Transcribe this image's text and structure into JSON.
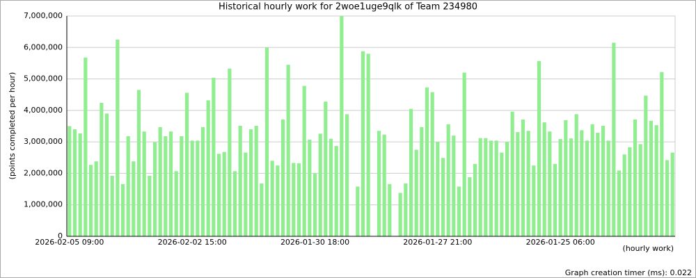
{
  "chart_data": {
    "type": "bar",
    "title": "Historical hourly work for 2woe1uge9qlk of Team 234980",
    "y_label": "(points completed per hour)",
    "x_label": "(hourly work)",
    "footer": "Graph creation timer (ms): 0.022",
    "color": "#90ee90",
    "grid": true,
    "ylim": [
      0,
      7000000
    ],
    "yticks": [
      0,
      {
        "value": 1000000,
        "label": "1,000,000"
      },
      {
        "value": 2000000,
        "label": "2,000,000"
      },
      {
        "value": 3000000,
        "label": "3,000,000"
      },
      {
        "value": 4000000,
        "label": "4,000,000"
      },
      {
        "value": 5000000,
        "label": "5,000,000"
      },
      {
        "value": 6000000,
        "label": "6,000,000"
      },
      {
        "value": 7000000,
        "label": "7,000,000"
      }
    ],
    "categories": [
      "2026-02-05 09:00",
      null,
      null,
      null,
      null,
      null,
      null,
      null,
      null,
      null,
      null,
      null,
      null,
      null,
      null,
      null,
      null,
      null,
      null,
      null,
      null,
      null,
      null,
      "2026-02-02 15:00",
      null,
      null,
      null,
      null,
      null,
      null,
      null,
      null,
      null,
      null,
      null,
      null,
      null,
      null,
      null,
      null,
      null,
      null,
      null,
      null,
      null,
      null,
      "2026-01-30 18:00",
      null,
      null,
      null,
      null,
      null,
      null,
      null,
      null,
      null,
      null,
      null,
      null,
      null,
      null,
      null,
      null,
      null,
      null,
      null,
      null,
      null,
      null,
      "2026-01-27 21:00",
      null,
      null,
      null,
      null,
      null,
      null,
      null,
      null,
      null,
      null,
      null,
      null,
      null,
      null,
      null,
      null,
      null,
      null,
      null,
      null,
      null,
      null,
      "2026-01-25 06:00",
      null,
      null,
      null,
      null,
      null,
      null,
      null,
      null,
      null,
      null,
      null,
      null,
      null,
      null,
      null,
      null,
      null,
      null,
      null,
      null,
      null
    ],
    "values": [
      3500000,
      3400000,
      3270000,
      5680000,
      2270000,
      2380000,
      4240000,
      3900000,
      1920000,
      6250000,
      1660000,
      3180000,
      2380000,
      4650000,
      3330000,
      1920000,
      2990000,
      3470000,
      3180000,
      3330000,
      2070000,
      3180000,
      4560000,
      3040000,
      3040000,
      3470000,
      4320000,
      5040000,
      2620000,
      2680000,
      5330000,
      2070000,
      3510000,
      2660000,
      3400000,
      3510000,
      1680000,
      6000000,
      2400000,
      2250000,
      3710000,
      5450000,
      2330000,
      2320000,
      4780000,
      3070000,
      2000000,
      3260000,
      4280000,
      3100000,
      2870000,
      7000000,
      3880000,
      null,
      1580000,
      5880000,
      5800000,
      null,
      3350000,
      3230000,
      1660000,
      null,
      1380000,
      1680000,
      4050000,
      2750000,
      3470000,
      4730000,
      4580000,
      3000000,
      2490000,
      3560000,
      3200000,
      1580000,
      5200000,
      1880000,
      2300000,
      3120000,
      3120000,
      3040000,
      3040000,
      2660000,
      3000000,
      3960000,
      3310000,
      3710000,
      3350000,
      2250000,
      5570000,
      3620000,
      3330000,
      2300000,
      3090000,
      3690000,
      3110000,
      3880000,
      3370000,
      3040000,
      3560000,
      3290000,
      3510000,
      3040000,
      6150000,
      2090000,
      2600000,
      2830000,
      3710000,
      2930000,
      4470000,
      3670000,
      3530000,
      5220000,
      2420000,
      2660000
    ]
  }
}
